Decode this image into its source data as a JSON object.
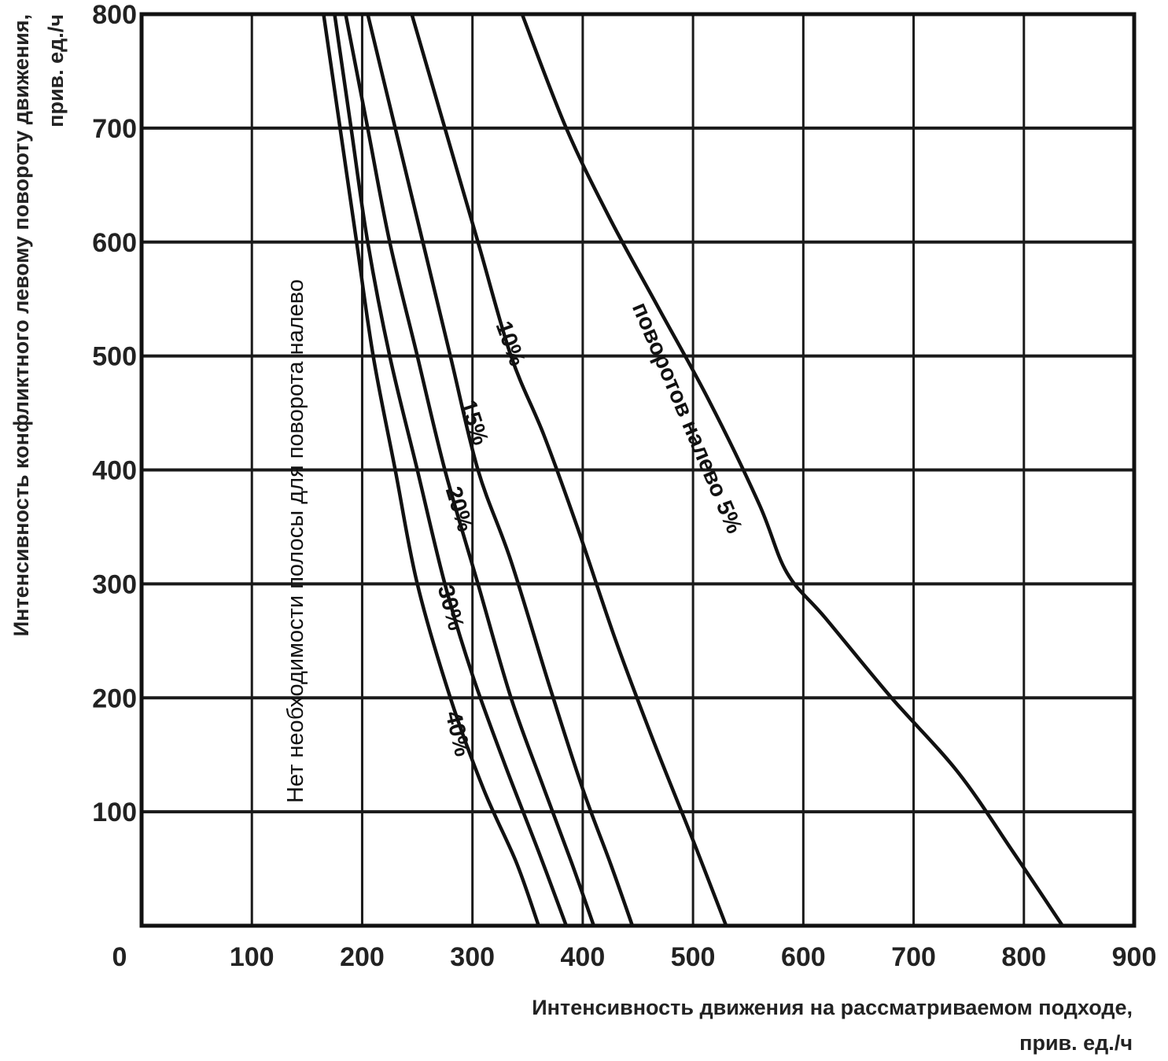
{
  "chart_data": {
    "type": "line",
    "xlabel_line1": "Интенсивность движения на рассматриваемом подходе,",
    "xlabel_line2": "прив. ед./ч",
    "ylabel_line1": "Интенсивность конфликтного левому повороту движения,",
    "ylabel_line2": "прив. ед./ч",
    "xlim": [
      0,
      900
    ],
    "ylim": [
      0,
      800
    ],
    "x_ticks": [
      0,
      100,
      200,
      300,
      400,
      500,
      600,
      700,
      800,
      900
    ],
    "y_ticks": [
      100,
      200,
      300,
      400,
      500,
      600,
      700,
      800
    ],
    "grid": true,
    "annotation": "Нет необходимости полосы для поворота налево",
    "series": [
      {
        "name": "5%",
        "label": "поворотов налево 5%",
        "points": [
          [
            345,
            800
          ],
          [
            385,
            700
          ],
          [
            425,
            620
          ],
          [
            470,
            540
          ],
          [
            515,
            460
          ],
          [
            560,
            370
          ],
          [
            585,
            310
          ],
          [
            620,
            270
          ],
          [
            680,
            200
          ],
          [
            740,
            135
          ],
          [
            790,
            65
          ],
          [
            835,
            0
          ]
        ]
      },
      {
        "name": "10%",
        "label": "10%",
        "points": [
          [
            245,
            800
          ],
          [
            275,
            700
          ],
          [
            305,
            600
          ],
          [
            335,
            500
          ],
          [
            365,
            430
          ],
          [
            395,
            350
          ],
          [
            430,
            250
          ],
          [
            465,
            160
          ],
          [
            500,
            75
          ],
          [
            530,
            0
          ]
        ]
      },
      {
        "name": "15%",
        "label": "15%",
        "points": [
          [
            205,
            800
          ],
          [
            230,
            700
          ],
          [
            255,
            600
          ],
          [
            280,
            500
          ],
          [
            305,
            400
          ],
          [
            335,
            320
          ],
          [
            370,
            210
          ],
          [
            400,
            120
          ],
          [
            425,
            55
          ],
          [
            445,
            0
          ]
        ]
      },
      {
        "name": "20%",
        "label": "20%",
        "points": [
          [
            185,
            800
          ],
          [
            205,
            700
          ],
          [
            225,
            600
          ],
          [
            250,
            500
          ],
          [
            275,
            400
          ],
          [
            305,
            300
          ],
          [
            335,
            200
          ],
          [
            365,
            120
          ],
          [
            390,
            55
          ],
          [
            410,
            0
          ]
        ]
      },
      {
        "name": "30%",
        "label": "30%",
        "points": [
          [
            175,
            800
          ],
          [
            190,
            700
          ],
          [
            205,
            600
          ],
          [
            225,
            500
          ],
          [
            250,
            400
          ],
          [
            275,
            300
          ],
          [
            300,
            220
          ],
          [
            330,
            140
          ],
          [
            360,
            65
          ],
          [
            385,
            0
          ]
        ]
      },
      {
        "name": "40%",
        "label": "40%",
        "points": [
          [
            165,
            800
          ],
          [
            180,
            700
          ],
          [
            195,
            600
          ],
          [
            210,
            500
          ],
          [
            230,
            400
          ],
          [
            250,
            300
          ],
          [
            280,
            200
          ],
          [
            310,
            120
          ],
          [
            340,
            55
          ],
          [
            360,
            0
          ]
        ]
      }
    ]
  }
}
